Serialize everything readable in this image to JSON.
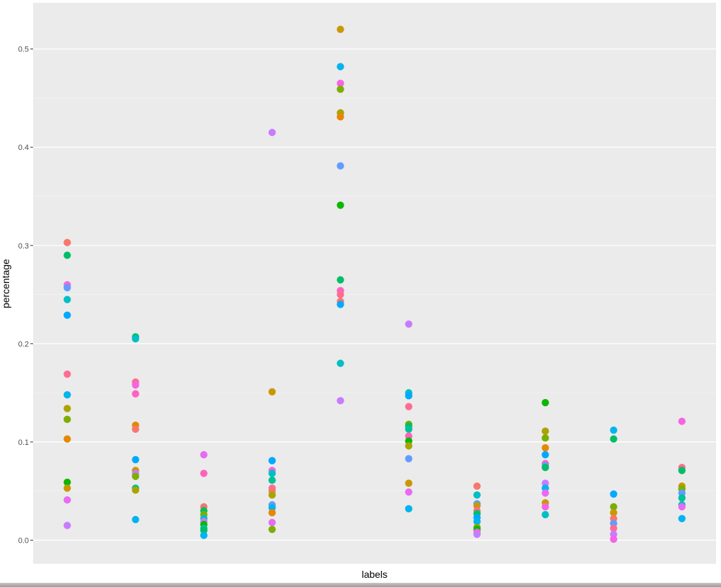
{
  "chart_data": {
    "type": "scatter",
    "xlabel": "labels",
    "ylabel": "percentage",
    "ylim": [
      -0.024,
      0.547
    ],
    "yticks": [
      0.0,
      0.1,
      0.2,
      0.3,
      0.4,
      0.5
    ],
    "ytick_labels": [
      "0.0",
      "0.1",
      "0.2",
      "0.3",
      "0.4",
      "0.5"
    ],
    "grid": true,
    "panel_background": "#ebebeb",
    "grid_color": "#ffffff",
    "groups": [
      {
        "points": [
          {
            "y": 0.303,
            "color": "#F8766D"
          },
          {
            "y": 0.29,
            "color": "#00BE67"
          },
          {
            "y": 0.26,
            "color": "#F564E3"
          },
          {
            "y": 0.257,
            "color": "#619CFF"
          },
          {
            "y": 0.245,
            "color": "#00BFC4"
          },
          {
            "y": 0.229,
            "color": "#00A9FF"
          },
          {
            "y": 0.169,
            "color": "#FF6C91"
          },
          {
            "y": 0.148,
            "color": "#00B4F0"
          },
          {
            "y": 0.134,
            "color": "#ABA300"
          },
          {
            "y": 0.123,
            "color": "#7CAE00"
          },
          {
            "y": 0.103,
            "color": "#E58700"
          },
          {
            "y": 0.059,
            "color": "#0CB702"
          },
          {
            "y": 0.053,
            "color": "#C99800"
          },
          {
            "y": 0.041,
            "color": "#E76BF3"
          },
          {
            "y": 0.015,
            "color": "#C77CFF"
          }
        ]
      },
      {
        "points": [
          {
            "y": 0.207,
            "color": "#00BE67"
          },
          {
            "y": 0.205,
            "color": "#00BFC4"
          },
          {
            "y": 0.161,
            "color": "#FF6C91"
          },
          {
            "y": 0.158,
            "color": "#F564E3"
          },
          {
            "y": 0.149,
            "color": "#FF62BC"
          },
          {
            "y": 0.117,
            "color": "#E58700"
          },
          {
            "y": 0.113,
            "color": "#F8766D"
          },
          {
            "y": 0.082,
            "color": "#00A9FF"
          },
          {
            "y": 0.071,
            "color": "#C99800"
          },
          {
            "y": 0.068,
            "color": "#C77CFF"
          },
          {
            "y": 0.065,
            "color": "#7CAE00"
          },
          {
            "y": 0.053,
            "color": "#00C19A"
          },
          {
            "y": 0.051,
            "color": "#ABA300"
          },
          {
            "y": 0.021,
            "color": "#00B4F0"
          }
        ]
      },
      {
        "points": [
          {
            "y": 0.087,
            "color": "#E76BF3"
          },
          {
            "y": 0.068,
            "color": "#FF62BC"
          },
          {
            "y": 0.034,
            "color": "#F8766D"
          },
          {
            "y": 0.03,
            "color": "#00BE67"
          },
          {
            "y": 0.026,
            "color": "#7CAE00"
          },
          {
            "y": 0.022,
            "color": "#00BFC4"
          },
          {
            "y": 0.019,
            "color": "#C77CFF"
          },
          {
            "y": 0.016,
            "color": "#0CB702"
          },
          {
            "y": 0.012,
            "color": "#00C19A"
          },
          {
            "y": 0.01,
            "color": "#00BE67"
          },
          {
            "y": 0.005,
            "color": "#00B4F0"
          }
        ]
      },
      {
        "points": [
          {
            "y": 0.415,
            "color": "#C77CFF"
          },
          {
            "y": 0.151,
            "color": "#C99800"
          },
          {
            "y": 0.081,
            "color": "#00A9FF"
          },
          {
            "y": 0.071,
            "color": "#F564E3"
          },
          {
            "y": 0.068,
            "color": "#00BFC4"
          },
          {
            "y": 0.061,
            "color": "#00C19A"
          },
          {
            "y": 0.053,
            "color": "#FF6C91"
          },
          {
            "y": 0.05,
            "color": "#F8766D"
          },
          {
            "y": 0.046,
            "color": "#ABA300"
          },
          {
            "y": 0.036,
            "color": "#619CFF"
          },
          {
            "y": 0.033,
            "color": "#00B4F0"
          },
          {
            "y": 0.028,
            "color": "#E58700"
          },
          {
            "y": 0.018,
            "color": "#E76BF3"
          },
          {
            "y": 0.011,
            "color": "#7CAE00"
          }
        ]
      },
      {
        "points": [
          {
            "y": 0.52,
            "color": "#C99800"
          },
          {
            "y": 0.482,
            "color": "#00B4F0"
          },
          {
            "y": 0.465,
            "color": "#F564E3"
          },
          {
            "y": 0.459,
            "color": "#7CAE00"
          },
          {
            "y": 0.435,
            "color": "#ABA300"
          },
          {
            "y": 0.431,
            "color": "#E58700"
          },
          {
            "y": 0.381,
            "color": "#619CFF"
          },
          {
            "y": 0.341,
            "color": "#0CB702"
          },
          {
            "y": 0.265,
            "color": "#00BE67"
          },
          {
            "y": 0.254,
            "color": "#FF62BC"
          },
          {
            "y": 0.25,
            "color": "#FF6C91"
          },
          {
            "y": 0.243,
            "color": "#F8766D"
          },
          {
            "y": 0.24,
            "color": "#00A9FF"
          },
          {
            "y": 0.18,
            "color": "#00BFC4"
          },
          {
            "y": 0.142,
            "color": "#C77CFF"
          }
        ]
      },
      {
        "points": [
          {
            "y": 0.22,
            "color": "#C77CFF"
          },
          {
            "y": 0.15,
            "color": "#00BFC4"
          },
          {
            "y": 0.147,
            "color": "#00A9FF"
          },
          {
            "y": 0.136,
            "color": "#FF6C91"
          },
          {
            "y": 0.118,
            "color": "#7CAE00"
          },
          {
            "y": 0.116,
            "color": "#00BE67"
          },
          {
            "y": 0.113,
            "color": "#00C19A"
          },
          {
            "y": 0.106,
            "color": "#FF62BC"
          },
          {
            "y": 0.101,
            "color": "#0CB702"
          },
          {
            "y": 0.096,
            "color": "#ABA300"
          },
          {
            "y": 0.083,
            "color": "#619CFF"
          },
          {
            "y": 0.058,
            "color": "#C99800"
          },
          {
            "y": 0.049,
            "color": "#E76BF3"
          },
          {
            "y": 0.032,
            "color": "#00B4F0"
          }
        ]
      },
      {
        "points": [
          {
            "y": 0.055,
            "color": "#F8766D"
          },
          {
            "y": 0.046,
            "color": "#00BFC4"
          },
          {
            "y": 0.037,
            "color": "#619CFF"
          },
          {
            "y": 0.035,
            "color": "#C99800"
          },
          {
            "y": 0.03,
            "color": "#FF6C91"
          },
          {
            "y": 0.027,
            "color": "#00BE67"
          },
          {
            "y": 0.023,
            "color": "#00A9FF"
          },
          {
            "y": 0.019,
            "color": "#00B4F0"
          },
          {
            "y": 0.013,
            "color": "#7CAE00"
          },
          {
            "y": 0.011,
            "color": "#0CB702"
          },
          {
            "y": 0.008,
            "color": "#F564E3"
          },
          {
            "y": 0.006,
            "color": "#C77CFF"
          }
        ]
      },
      {
        "points": [
          {
            "y": 0.14,
            "color": "#0CB702"
          },
          {
            "y": 0.111,
            "color": "#ABA300"
          },
          {
            "y": 0.104,
            "color": "#7CAE00"
          },
          {
            "y": 0.094,
            "color": "#E58700"
          },
          {
            "y": 0.087,
            "color": "#00A9FF"
          },
          {
            "y": 0.078,
            "color": "#FF62BC"
          },
          {
            "y": 0.076,
            "color": "#619CFF"
          },
          {
            "y": 0.074,
            "color": "#00BE67"
          },
          {
            "y": 0.058,
            "color": "#C77CFF"
          },
          {
            "y": 0.053,
            "color": "#00B4F0"
          },
          {
            "y": 0.048,
            "color": "#E76BF3"
          },
          {
            "y": 0.038,
            "color": "#C99800"
          },
          {
            "y": 0.034,
            "color": "#F564E3"
          },
          {
            "y": 0.026,
            "color": "#00BFC4"
          }
        ]
      },
      {
        "points": [
          {
            "y": 0.112,
            "color": "#00B4F0"
          },
          {
            "y": 0.103,
            "color": "#00BE67"
          },
          {
            "y": 0.047,
            "color": "#00A9FF"
          },
          {
            "y": 0.034,
            "color": "#7CAE00"
          },
          {
            "y": 0.028,
            "color": "#C99800"
          },
          {
            "y": 0.022,
            "color": "#F8766D"
          },
          {
            "y": 0.017,
            "color": "#619CFF"
          },
          {
            "y": 0.012,
            "color": "#FF6C91"
          },
          {
            "y": 0.006,
            "color": "#C77CFF"
          },
          {
            "y": 0.001,
            "color": "#F564E3"
          }
        ]
      },
      {
        "points": [
          {
            "y": 0.121,
            "color": "#F564E3"
          },
          {
            "y": 0.074,
            "color": "#FF6C91"
          },
          {
            "y": 0.071,
            "color": "#00BE67"
          },
          {
            "y": 0.055,
            "color": "#C99800"
          },
          {
            "y": 0.052,
            "color": "#7CAE00"
          },
          {
            "y": 0.048,
            "color": "#619CFF"
          },
          {
            "y": 0.043,
            "color": "#00C19A"
          },
          {
            "y": 0.036,
            "color": "#00BFC4"
          },
          {
            "y": 0.034,
            "color": "#E76BF3"
          },
          {
            "y": 0.022,
            "color": "#00B4F0"
          }
        ]
      }
    ]
  }
}
